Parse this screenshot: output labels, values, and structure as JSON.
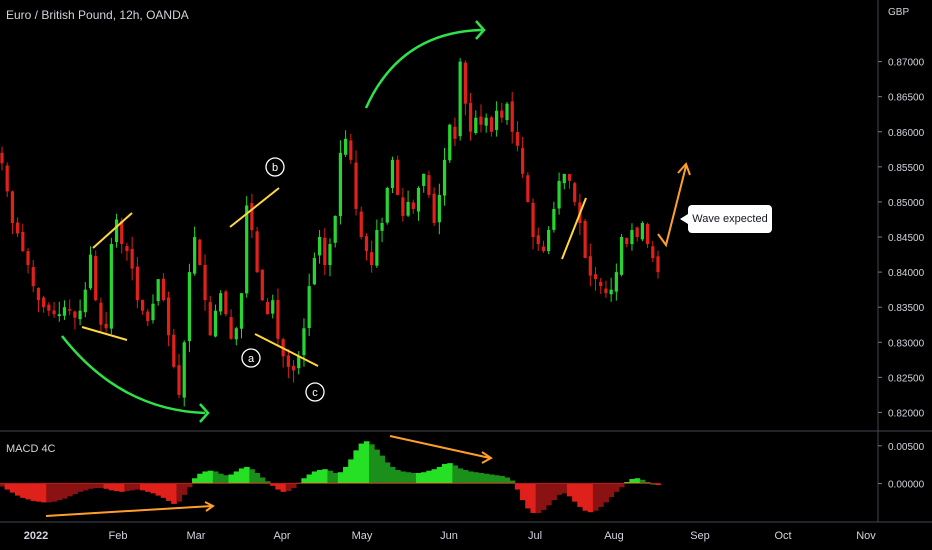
{
  "header": {
    "title": "Euro / British Pound, 12h, OANDA",
    "currency": "GBP"
  },
  "macd": {
    "title": "MACD 4C"
  },
  "callout": {
    "text": "Wave expected"
  },
  "wave_labels": [
    "a",
    "b",
    "c"
  ],
  "colors": {
    "up": "#26d531",
    "down": "#e0201b",
    "macd_up": "#1fb81f",
    "macd_down": "#c41818",
    "trend": "#ffd740",
    "arrow_green": "#2ee24a",
    "arrow_orange": "#ff9f2a",
    "axis_text": "#d1d4dc"
  },
  "chart_data": [
    {
      "type": "candlestick",
      "title": "Euro / British Pound, 12h, OANDA",
      "x_ticks": [
        "2022",
        "Feb",
        "Mar",
        "Apr",
        "May",
        "Jun",
        "Jul",
        "Aug",
        "Sep",
        "Oct",
        "Nov"
      ],
      "y_ticks": [
        "0.87000",
        "0.86500",
        "0.86000",
        "0.85500",
        "0.85000",
        "0.84500",
        "0.84000",
        "0.83500",
        "0.83000",
        "0.82500",
        "0.82000"
      ],
      "y_range": [
        0.8175,
        0.8745
      ],
      "closes": [
        0.8555,
        0.8515,
        0.847,
        0.8455,
        0.843,
        0.841,
        0.838,
        0.836,
        0.835,
        0.8345,
        0.834,
        0.834,
        0.835,
        0.8345,
        0.8335,
        0.8345,
        0.8375,
        0.8425,
        0.836,
        0.8325,
        0.832,
        0.844,
        0.8475,
        0.844,
        0.843,
        0.8405,
        0.836,
        0.8345,
        0.833,
        0.8355,
        0.839,
        0.836,
        0.831,
        0.8265,
        0.8225,
        0.83,
        0.84,
        0.845,
        0.841,
        0.836,
        0.831,
        0.8345,
        0.837,
        0.834,
        0.8305,
        0.832,
        0.837,
        0.8495,
        0.846,
        0.84,
        0.836,
        0.834,
        0.836,
        0.8305,
        0.828,
        0.8265,
        0.826,
        0.828,
        0.832,
        0.838,
        0.842,
        0.845,
        0.841,
        0.844,
        0.848,
        0.857,
        0.859,
        0.856,
        0.849,
        0.845,
        0.843,
        0.841,
        0.846,
        0.847,
        0.852,
        0.856,
        0.851,
        0.848,
        0.85,
        0.849,
        0.852,
        0.854,
        0.851,
        0.847,
        0.851,
        0.856,
        0.861,
        0.859,
        0.87,
        0.864,
        0.86,
        0.862,
        0.861,
        0.862,
        0.86,
        0.863,
        0.862,
        0.864,
        0.86,
        0.858,
        0.854,
        0.85,
        0.845,
        0.844,
        0.843,
        0.846,
        0.849,
        0.853,
        0.854,
        0.853,
        0.85,
        0.847,
        0.842,
        0.8395,
        0.839,
        0.838,
        0.837,
        0.8375,
        0.84,
        0.845,
        0.844,
        0.846,
        0.845,
        0.847,
        0.844,
        0.842,
        0.84
      ],
      "annotation": "Wave expected",
      "wave_labels": [
        "a",
        "b",
        "c"
      ]
    },
    {
      "type": "bar",
      "title": "MACD 4C",
      "y_ticks": [
        "0.00500",
        "0.00000"
      ],
      "y_range": [
        -0.0047,
        0.0063
      ],
      "values": [
        -0.0004,
        -0.0008,
        -0.0012,
        -0.0016,
        -0.0019,
        -0.0021,
        -0.0023,
        -0.0024,
        -0.0025,
        -0.0025,
        -0.0024,
        -0.0022,
        -0.002,
        -0.0017,
        -0.0014,
        -0.0011,
        -0.0009,
        -0.0007,
        -0.0006,
        -0.0006,
        -0.0007,
        -0.0009,
        -0.001,
        -0.0011,
        -0.001,
        -0.0009,
        -0.0008,
        -0.0009,
        -0.0011,
        -0.0013,
        -0.0016,
        -0.0019,
        -0.0023,
        -0.0027,
        -0.0024,
        -0.0015,
        -0.0005,
        0.0007,
        0.0013,
        0.0016,
        0.0017,
        0.0016,
        0.0013,
        0.0011,
        0.0012,
        0.0016,
        0.002,
        0.0022,
        0.0019,
        0.0014,
        0.0008,
        0.0003,
        -0.0003,
        -0.0008,
        -0.0011,
        -0.001,
        -0.0006,
        0.0001,
        0.0007,
        0.0012,
        0.0016,
        0.0018,
        0.0019,
        0.0017,
        0.0014,
        0.0015,
        0.0022,
        0.0032,
        0.0044,
        0.0053,
        0.0056,
        0.0052,
        0.0045,
        0.0037,
        0.0028,
        0.0022,
        0.0018,
        0.0016,
        0.0015,
        0.0014,
        0.0014,
        0.0015,
        0.0017,
        0.0019,
        0.0022,
        0.0026,
        0.0027,
        0.0024,
        0.002,
        0.0018,
        0.0016,
        0.0015,
        0.0014,
        0.0013,
        0.0012,
        0.0011,
        0.001,
        0.0008,
        0.0004,
        -0.0008,
        -0.0022,
        -0.0033,
        -0.0039,
        -0.0039,
        -0.0035,
        -0.0029,
        -0.0022,
        -0.0015,
        -0.0013,
        -0.0017,
        -0.0024,
        -0.0031,
        -0.0036,
        -0.0038,
        -0.0036,
        -0.0031,
        -0.0025,
        -0.0018,
        -0.0011,
        -0.0005,
        0.0002,
        0.0006,
        0.0007,
        0.0005,
        0.0002,
        0.0,
        -0.0002
      ]
    }
  ]
}
